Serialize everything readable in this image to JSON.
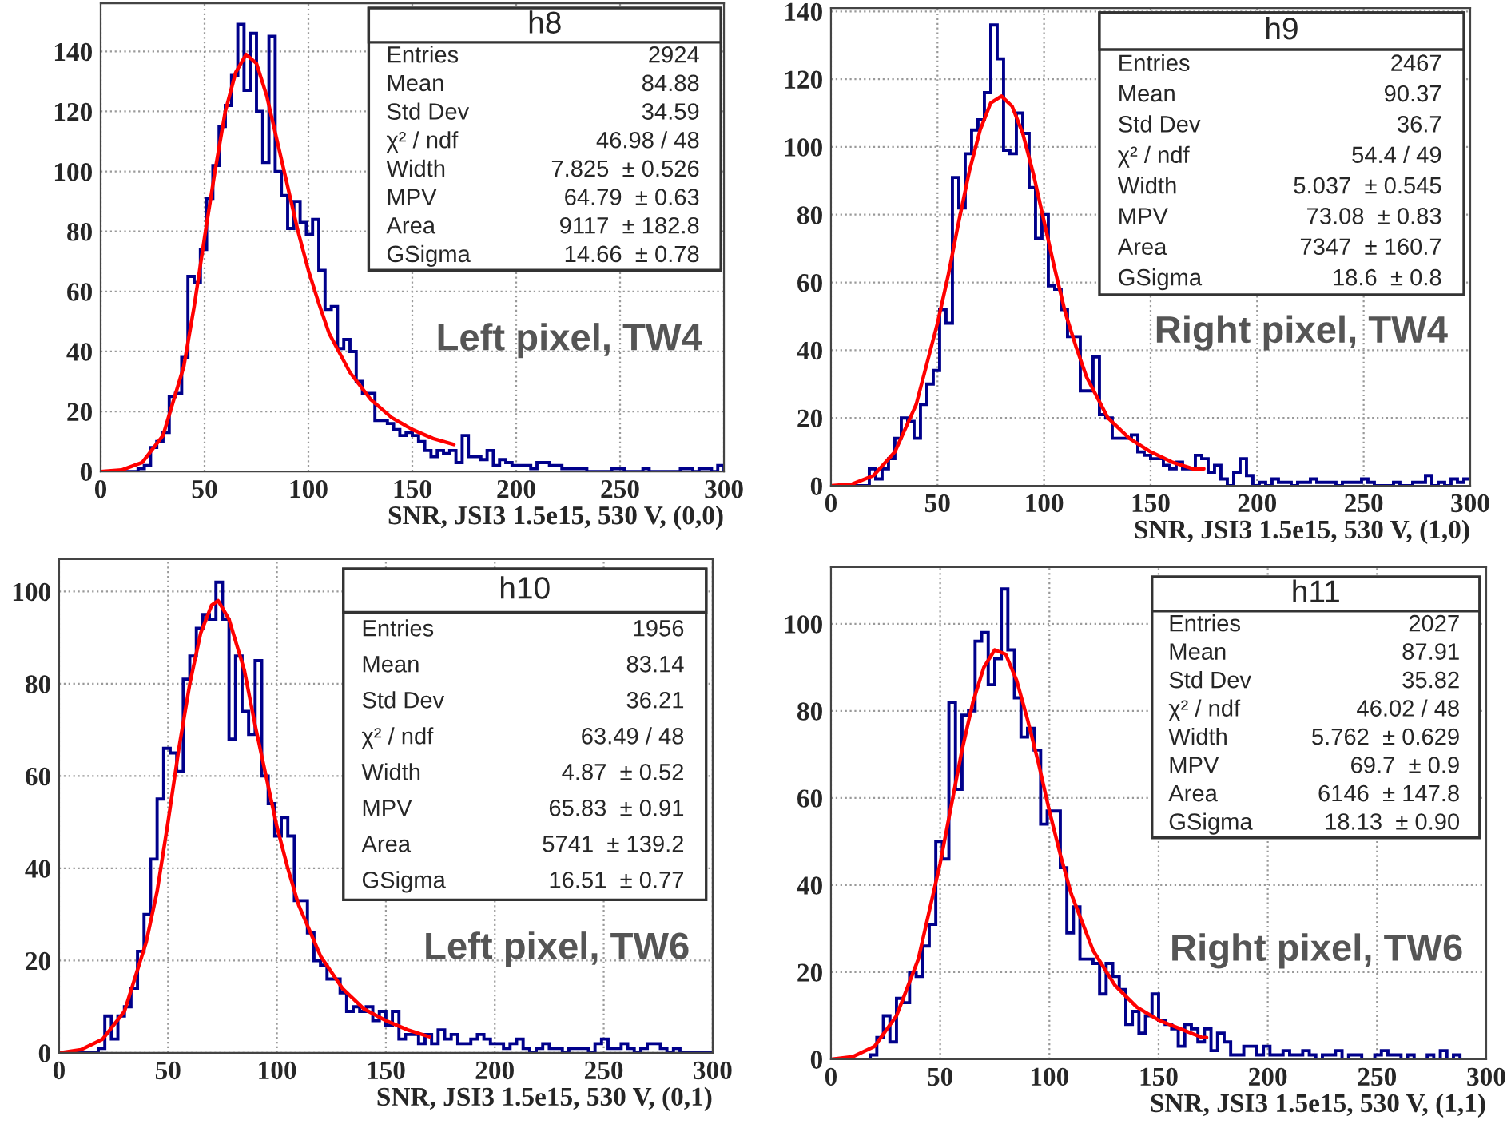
{
  "chart_data": [
    {
      "type": "histogram",
      "xlabel": "SNR, JSI3 1.5e15, 530 V, (0,0)",
      "xlim": [
        0,
        300
      ],
      "xticks": [
        0,
        50,
        100,
        150,
        200,
        250,
        300
      ],
      "ylim": [
        0,
        156
      ],
      "yticks": [
        0,
        20,
        40,
        60,
        80,
        100,
        120,
        140
      ],
      "grid": true,
      "bins": [
        0,
        3,
        6,
        9,
        12,
        15,
        18,
        21,
        24,
        27,
        30,
        33,
        36,
        39,
        42,
        45,
        48,
        51,
        54,
        57,
        60,
        63,
        66,
        69,
        72,
        75,
        78,
        81,
        84,
        87,
        90,
        93,
        96,
        99,
        102,
        105,
        108,
        111,
        114,
        117,
        120,
        123,
        126,
        129,
        132,
        135,
        138,
        141,
        144,
        147,
        150,
        153,
        156,
        159,
        162,
        165,
        168,
        171,
        174,
        177,
        180,
        183,
        186,
        189,
        192,
        195,
        198,
        201,
        204,
        207,
        210,
        213,
        216,
        219,
        222,
        225,
        228,
        231,
        234,
        237,
        240,
        243,
        246,
        249,
        252,
        255,
        258,
        261,
        264,
        267,
        270,
        273,
        276,
        279,
        282,
        285,
        288,
        291,
        294,
        297,
        300
      ],
      "series": [
        {
          "type": "histogram",
          "color": "#00008b",
          "values": [
            0,
            0,
            0,
            0,
            0,
            0,
            1,
            2,
            8,
            10,
            13,
            25,
            26,
            38,
            65,
            63,
            74,
            91,
            102,
            115,
            122,
            132,
            149,
            127,
            146,
            120,
            103,
            145,
            100,
            92,
            81,
            90,
            83,
            79,
            84,
            67,
            54,
            55,
            41,
            44,
            40,
            30,
            26,
            26,
            17,
            17,
            16,
            14,
            12,
            13,
            12,
            10,
            7,
            5,
            7,
            6,
            7,
            3,
            12,
            5,
            5,
            4,
            7,
            2,
            4,
            3,
            2,
            2,
            2,
            1,
            3,
            3,
            2,
            2,
            1,
            1,
            1,
            1,
            0,
            0,
            0,
            0,
            1,
            1,
            0,
            0,
            0,
            1,
            0,
            0,
            0,
            0,
            0,
            1,
            1,
            0,
            1,
            1,
            0,
            2
          ]
        },
        {
          "type": "line",
          "color": "#ff0000",
          "x": [
            0,
            10,
            20,
            30,
            40,
            45,
            50,
            55,
            60,
            65,
            70,
            75,
            80,
            85,
            90,
            95,
            100,
            105,
            110,
            120,
            130,
            140,
            150,
            160,
            170
          ],
          "values": [
            0,
            0.5,
            3,
            12,
            35,
            55,
            78,
            100,
            120,
            133,
            139,
            136,
            125,
            110,
            95,
            80,
            67,
            56,
            46,
            33,
            24,
            18,
            14,
            11,
            9
          ]
        }
      ],
      "annotations": [
        "h8",
        "Entries",
        "2924",
        "Mean",
        "84.88",
        "Std Dev",
        "34.59",
        "χ² / ndf",
        "46.98 / 48",
        "Width",
        "7.825  ± 0.526",
        "MPV",
        "64.79  ± 0.63",
        "Area",
        "9117  ± 182.8",
        "GSigma",
        "14.66  ± 0.78",
        "Left pixel, TW4"
      ]
    },
    {
      "type": "histogram",
      "xlabel": "SNR, JSI3 1.5e15, 530 V, (1,0)",
      "xlim": [
        0,
        300
      ],
      "xticks": [
        0,
        50,
        100,
        150,
        200,
        250,
        300
      ],
      "ylim": [
        0,
        141
      ],
      "yticks": [
        0,
        20,
        40,
        60,
        80,
        100,
        120,
        140
      ],
      "grid": true,
      "bins": [
        0,
        3,
        6,
        9,
        12,
        15,
        18,
        21,
        24,
        27,
        30,
        33,
        36,
        39,
        42,
        45,
        48,
        51,
        54,
        57,
        60,
        63,
        66,
        69,
        72,
        75,
        78,
        81,
        84,
        87,
        90,
        93,
        96,
        99,
        102,
        105,
        108,
        111,
        114,
        117,
        120,
        123,
        126,
        129,
        132,
        135,
        138,
        141,
        144,
        147,
        150,
        153,
        156,
        159,
        162,
        165,
        168,
        171,
        174,
        177,
        180,
        183,
        186,
        189,
        192,
        195,
        198,
        201,
        204,
        207,
        210,
        213,
        216,
        219,
        222,
        225,
        228,
        231,
        234,
        237,
        240,
        243,
        246,
        249,
        252,
        255,
        258,
        261,
        264,
        267,
        270,
        273,
        276,
        279,
        282,
        285,
        288,
        291,
        294,
        297,
        300
      ],
      "series": [
        {
          "type": "histogram",
          "color": "#00008b",
          "values": [
            0,
            0,
            0,
            0,
            0,
            0,
            5,
            2,
            5,
            8,
            14,
            20,
            19,
            14,
            24,
            30,
            34,
            52,
            48,
            91,
            82,
            98,
            105,
            108,
            116,
            136,
            126,
            99,
            98,
            110,
            104,
            88,
            73,
            80,
            59,
            58,
            52,
            44,
            44,
            28,
            28,
            38,
            21,
            20,
            14,
            14,
            14,
            15,
            10,
            9,
            8,
            8,
            6,
            5,
            7,
            5,
            5,
            9,
            8,
            4,
            6,
            2,
            0,
            4,
            8,
            3,
            0,
            1,
            0,
            2,
            1,
            1,
            0,
            1,
            1,
            2,
            1,
            1,
            1,
            0,
            1,
            1,
            1,
            2,
            1,
            0,
            0,
            0,
            1,
            0,
            0,
            1,
            1,
            3,
            0,
            1,
            0,
            2,
            1,
            2
          ]
        },
        {
          "type": "line",
          "color": "#ff0000",
          "x": [
            0,
            10,
            20,
            30,
            40,
            50,
            55,
            60,
            65,
            70,
            75,
            80,
            85,
            90,
            95,
            100,
            105,
            110,
            115,
            120,
            130,
            140,
            150,
            160,
            170,
            175
          ],
          "values": [
            0,
            0.5,
            3,
            10,
            24,
            48,
            62,
            78,
            93,
            105,
            113,
            115,
            112,
            104,
            92,
            78,
            64,
            51,
            41,
            32,
            20,
            14,
            10,
            7,
            5,
            5
          ]
        }
      ],
      "annotations": [
        "h9",
        "Entries",
        "2467",
        "Mean",
        "90.37",
        "Std Dev",
        "36.7",
        "χ² / ndf",
        "54.4 / 49",
        "Width",
        "5.037  ± 0.545",
        "MPV",
        "73.08  ± 0.83",
        "Area",
        "7347  ± 160.7",
        "GSigma",
        "18.6  ± 0.8",
        "Right pixel, TW4"
      ]
    },
    {
      "type": "histogram",
      "xlabel": "SNR, JSI3 1.5e15, 530 V, (0,1)",
      "xlim": [
        0,
        300
      ],
      "xticks": [
        0,
        50,
        100,
        150,
        200,
        250,
        300
      ],
      "ylim": [
        0,
        107
      ],
      "yticks": [
        0,
        20,
        40,
        60,
        80,
        100
      ],
      "grid": true,
      "bins": [
        0,
        3,
        6,
        9,
        12,
        15,
        18,
        21,
        24,
        27,
        30,
        33,
        36,
        39,
        42,
        45,
        48,
        51,
        54,
        57,
        60,
        63,
        66,
        69,
        72,
        75,
        78,
        81,
        84,
        87,
        90,
        93,
        96,
        99,
        102,
        105,
        108,
        111,
        114,
        117,
        120,
        123,
        126,
        129,
        132,
        135,
        138,
        141,
        144,
        147,
        150,
        153,
        156,
        159,
        162,
        165,
        168,
        171,
        174,
        177,
        180,
        183,
        186,
        189,
        192,
        195,
        198,
        201,
        204,
        207,
        210,
        213,
        216,
        219,
        222,
        225,
        228,
        231,
        234,
        237,
        240,
        243,
        246,
        249,
        252,
        255,
        258,
        261,
        264,
        267,
        270,
        273,
        276,
        279,
        282,
        285,
        288,
        291,
        294,
        297,
        300
      ],
      "series": [
        {
          "type": "histogram",
          "color": "#00008b",
          "values": [
            0,
            0,
            0,
            0,
            0,
            0,
            1,
            8,
            3,
            8,
            10,
            14,
            22,
            30,
            42,
            55,
            66,
            65,
            61,
            81,
            86,
            92,
            95,
            94,
            102,
            94,
            68,
            86,
            74,
            69,
            85,
            60,
            54,
            47,
            51,
            47,
            33,
            33,
            26,
            20,
            19,
            16,
            16,
            13,
            9,
            10,
            9,
            10,
            7,
            9,
            6,
            9,
            3,
            4,
            4,
            2,
            4,
            2,
            5,
            3,
            4,
            2,
            2,
            3,
            4,
            3,
            2,
            2,
            1,
            2,
            3,
            1,
            0,
            1,
            2,
            1,
            1,
            0,
            1,
            1,
            1,
            0,
            2,
            3,
            1,
            1,
            2,
            1,
            0,
            1,
            2,
            2,
            1,
            0,
            1,
            0,
            0,
            0,
            0,
            0
          ]
        },
        {
          "type": "line",
          "color": "#ff0000",
          "x": [
            0,
            10,
            20,
            30,
            40,
            45,
            50,
            55,
            60,
            65,
            70,
            73,
            78,
            85,
            90,
            95,
            100,
            105,
            110,
            120,
            130,
            140,
            150,
            160,
            170
          ],
          "values": [
            0,
            0.7,
            3,
            9,
            24,
            35,
            50,
            66,
            80,
            91,
            97,
            98,
            94,
            83,
            71,
            60,
            49,
            40,
            32,
            21,
            14,
            9.5,
            7,
            5,
            3.5
          ]
        }
      ],
      "annotations": [
        "h10",
        "Entries",
        "1956",
        "Mean",
        "83.14",
        "Std Dev",
        "36.21",
        "χ² / ndf",
        "63.49 / 48",
        "Width",
        "4.87  ± 0.52",
        "MPV",
        "65.83  ± 0.91",
        "Area",
        "5741  ± 139.2",
        "GSigma",
        "16.51  ± 0.77",
        "Left pixel, TW6"
      ]
    },
    {
      "type": "histogram",
      "xlabel": "SNR, JSI3 1.5e15, 530 V, (1,1)",
      "xlim": [
        0,
        300
      ],
      "xticks": [
        0,
        50,
        100,
        150,
        200,
        250,
        300
      ],
      "ylim": [
        0,
        113
      ],
      "yticks": [
        0,
        20,
        40,
        60,
        80,
        100
      ],
      "grid": true,
      "bins": [
        0,
        3,
        6,
        9,
        12,
        15,
        18,
        21,
        24,
        27,
        30,
        33,
        36,
        39,
        42,
        45,
        48,
        51,
        54,
        57,
        60,
        63,
        66,
        69,
        72,
        75,
        78,
        81,
        84,
        87,
        90,
        93,
        96,
        99,
        102,
        105,
        108,
        111,
        114,
        117,
        120,
        123,
        126,
        129,
        132,
        135,
        138,
        141,
        144,
        147,
        150,
        153,
        156,
        159,
        162,
        165,
        168,
        171,
        174,
        177,
        180,
        183,
        186,
        189,
        192,
        195,
        198,
        201,
        204,
        207,
        210,
        213,
        216,
        219,
        222,
        225,
        228,
        231,
        234,
        237,
        240,
        243,
        246,
        249,
        252,
        255,
        258,
        261,
        264,
        267,
        270,
        273,
        276,
        279,
        282,
        285,
        288,
        291,
        294,
        297,
        300
      ],
      "series": [
        {
          "type": "histogram",
          "color": "#00008b",
          "values": [
            0,
            0,
            0,
            0,
            0,
            0,
            1,
            5,
            10,
            4,
            14,
            13,
            20,
            19,
            26,
            31,
            50,
            46,
            82,
            62,
            79,
            80,
            96,
            98,
            86,
            92,
            108,
            94,
            83,
            74,
            76,
            71,
            54,
            57,
            57,
            44,
            29,
            35,
            23,
            23,
            22,
            15,
            22,
            19,
            16,
            8,
            11,
            6,
            10,
            15,
            9,
            8,
            7,
            3,
            8,
            7,
            4,
            7,
            2,
            6,
            4,
            1,
            1,
            3,
            3,
            1,
            3,
            1,
            1,
            2,
            1,
            1,
            2,
            1,
            0,
            1,
            1,
            2,
            0,
            1,
            1,
            0,
            0,
            1,
            2,
            1,
            1,
            0,
            1,
            0,
            0,
            1,
            0,
            2,
            0,
            1,
            0,
            0,
            0,
            0
          ]
        },
        {
          "type": "line",
          "color": "#ff0000",
          "x": [
            0,
            10,
            20,
            30,
            40,
            50,
            55,
            60,
            65,
            70,
            75,
            80,
            85,
            90,
            95,
            100,
            105,
            110,
            120,
            130,
            140,
            150,
            160,
            170,
            172
          ],
          "values": [
            0,
            0.6,
            3,
            10,
            23,
            45,
            58,
            71,
            82,
            90,
            94,
            93,
            87,
            78,
            68,
            57,
            47,
            38,
            25,
            17,
            12,
            9,
            7,
            5,
            5
          ]
        }
      ],
      "annotations": [
        "h11",
        "Entries",
        "2027",
        "Mean",
        "87.91",
        "Std Dev",
        "35.82",
        "χ² / ndf",
        "46.02 / 48",
        "Width",
        "5.762  ± 0.629",
        "MPV",
        "69.7  ± 0.9",
        "Area",
        "6146  ± 147.8",
        "GSigma",
        "18.13  ± 0.90",
        "Right pixel, TW6"
      ]
    }
  ]
}
